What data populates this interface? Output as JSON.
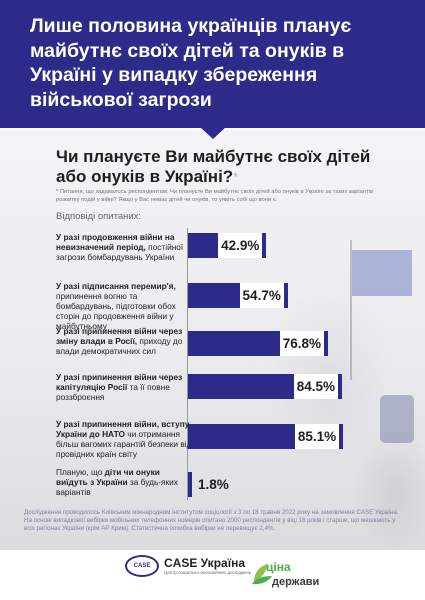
{
  "header": {
    "title": "Лише половина українців планує майбутнє своїх дітей та онуків в Україні у випадку збереження військової загрози"
  },
  "question": {
    "text": "Чи плануєте Ви майбутнє своїх дітей або онуків в Україні?",
    "mark": "*"
  },
  "footnote": "* Питання, що задавалось респондентам: Чи плануєте Ви майбутнє своїх дітей або онуків в Україні за таких варіантів розвитку подій у війні? Якщо у Вас немає дітей чи онуків, то уявіть собі що вони є.",
  "answers_label": "Відповіді опитаних:",
  "rows": [
    {
      "bold": "У разі продовження війни на невизначений період,",
      "rest": " постійної загрози бомбардувань України",
      "value_label": "42.9%"
    },
    {
      "bold": "У разі підписання перемир'я,",
      "rest": " припинення вогню та бомбардувань, підготовки обох сторін до продовження війни у майбутньому",
      "value_label": "54.7%"
    },
    {
      "bold": "У разі припинення війни через зміну влади в Росії,",
      "rest": " приходу до влади демократичних сил",
      "value_label": "76.8%"
    },
    {
      "bold": "У разі припинення війни через капітуляцію Росії",
      "rest": " та її повне роззброєння",
      "value_label": "84.5%"
    },
    {
      "bold": "У разі припинення війни, вступу України до НАТО",
      "rest": " чи отримання більш вагомих гарантій безпеки від провідних країн світу",
      "value_label": "85.1%"
    },
    {
      "pre": "Планую, що ",
      "bold": "діти чи онуки виїдуть з України",
      "rest": " за будь-яких варіантів",
      "value_label": "1.8%"
    }
  ],
  "chart_data": {
    "type": "bar",
    "orientation": "horizontal",
    "categories": [
      "У разі продовження війни на невизначений період, постійної загрози бомбардувань України",
      "У разі підписання перемир'я, припинення вогню та бомбардувань, підготовки обох сторін до продовження війни у майбутньому",
      "У разі припинення війни через зміну влади в Росії, приходу до влади демократичних сил",
      "У разі припинення війни через капітуляцію Росії та її повне роззброєння",
      "У разі припинення війни, вступу України до НАТО чи отримання більш вагомих гарантій безпеки від провідних країн світу",
      "Планую, що діти чи онуки виїдуть з України за будь-яких варіантів"
    ],
    "values": [
      42.9,
      54.7,
      76.8,
      84.5,
      85.1,
      1.8
    ],
    "unit": "%",
    "xlim": [
      0,
      100
    ],
    "bar_color": "#2e2a8a",
    "grid": false,
    "legend": "none"
  },
  "methodology": "Дослідження проводилось Київським міжнародним інститутом соціології з 3 по 18 травня 2022 року на замовлення CASE Україна. На основі випадкової вибірки мобільних телефонних номерів опитано 2000 респондентів у віці 18 років і старше, що мешкають у всіх регіонах України (крім АР Крим). Статистична похибка вибірки не перевищує 2,4%.",
  "logos": {
    "case_badge": "CASE",
    "case_name": "CASE Україна",
    "case_sub": "Центр соціально-економічних досліджень",
    "tsina": "ціна",
    "derzhavy": "держави"
  },
  "colors": {
    "brand": "#2e2a8a",
    "background": "#ffffff"
  }
}
